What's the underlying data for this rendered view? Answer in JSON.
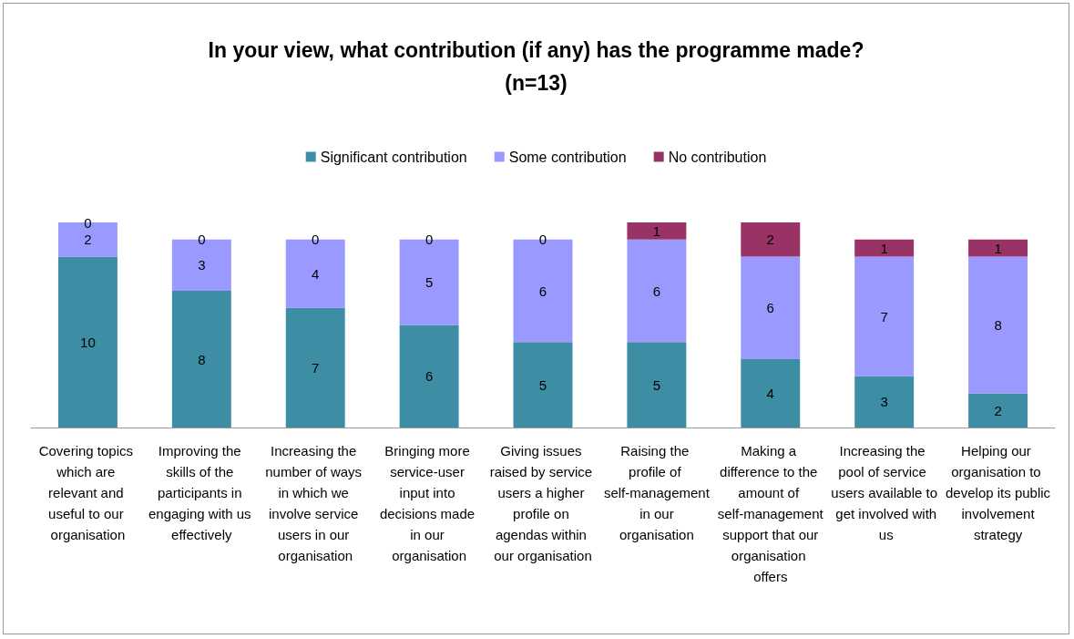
{
  "chart_data": {
    "type": "bar",
    "title": "In your view, what contribution (if any) has the programme made?\n(n=13)",
    "categories": [
      "Covering topics which are relevant and useful to our organisation",
      "Improving the skills of the participants in engaging with us effectively",
      "Increasing the number of ways in which we involve service users in our organisation",
      "Bringing more service-user input into decisions made in our organisation",
      "Giving issues raised by service users a higher profile on agendas within our organisation",
      "Raising the profile of self-management in our organisation",
      "Making a difference to the amount of self-management support that our organisation offers",
      "Increasing the pool of service users available to get involved with us",
      "Helping our organisation to develop its public involvement strategy"
    ],
    "series": [
      {
        "name": "Significant contribution",
        "color": "#3d8ea5",
        "values": [
          10,
          8,
          7,
          6,
          5,
          5,
          4,
          3,
          2
        ]
      },
      {
        "name": "Some contribution",
        "color": "#9999ff",
        "values": [
          2,
          3,
          4,
          5,
          6,
          6,
          6,
          7,
          8
        ]
      },
      {
        "name": "No contribution",
        "color": "#993366",
        "values": [
          0,
          0,
          0,
          0,
          0,
          1,
          2,
          1,
          1
        ]
      }
    ],
    "stacked": true,
    "data_labels": true,
    "legend": "top"
  }
}
